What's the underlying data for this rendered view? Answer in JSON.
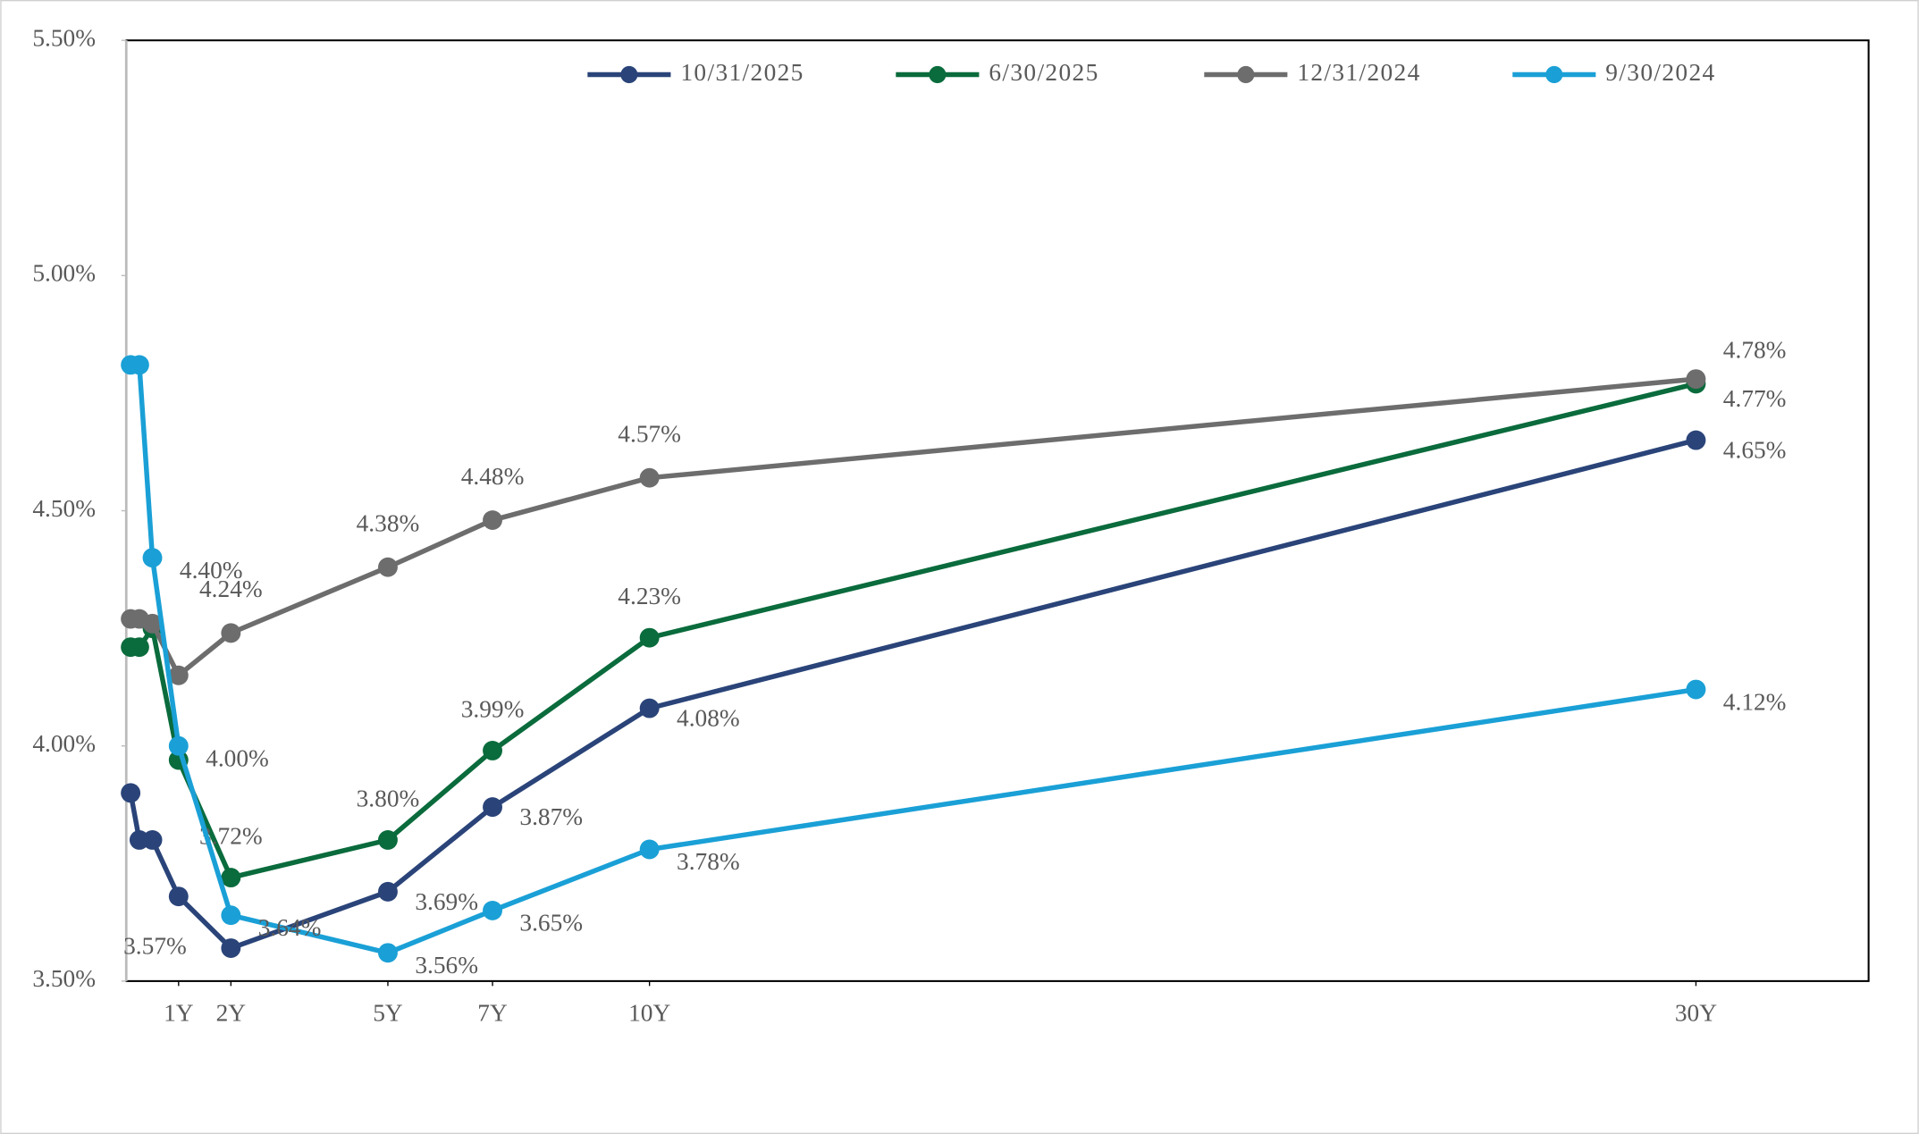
{
  "chart_data": {
    "type": "line",
    "x": [
      0.0833,
      0.25,
      0.5,
      1,
      2,
      5,
      7,
      10,
      30
    ],
    "xlim": [
      0,
      33.3
    ],
    "xticks": [
      {
        "value": 1,
        "label": "1Y"
      },
      {
        "value": 2,
        "label": "2Y"
      },
      {
        "value": 5,
        "label": "5Y"
      },
      {
        "value": 7,
        "label": "7Y"
      },
      {
        "value": 10,
        "label": "10Y"
      },
      {
        "value": 30,
        "label": "30Y"
      }
    ],
    "ylim": [
      3.5,
      5.5
    ],
    "yticks": [
      {
        "value": 3.5,
        "label": "3.50%"
      },
      {
        "value": 4,
        "label": "4.00%"
      },
      {
        "value": 4.5,
        "label": "4.50%"
      },
      {
        "value": 5,
        "label": "5.00%"
      },
      {
        "value": 5.5,
        "label": "5.50%"
      }
    ],
    "legend": "top",
    "series": [
      {
        "name": "10/31/2025",
        "color": "#2a4479",
        "values": [
          3.9,
          3.8,
          3.8,
          3.68,
          3.57,
          3.69,
          3.87,
          4.08,
          4.65
        ],
        "value_labels": [
          null,
          null,
          null,
          null,
          "3.57%",
          "3.69%",
          "3.87%",
          "4.08%",
          "4.65%"
        ]
      },
      {
        "name": "6/30/2025",
        "color": "#0a6b3c",
        "values": [
          4.21,
          4.21,
          4.25,
          3.97,
          3.72,
          3.8,
          3.99,
          4.23,
          4.77
        ],
        "value_labels": [
          null,
          null,
          null,
          null,
          "3.72%",
          "3.80%",
          "3.99%",
          "4.23%",
          "4.77%"
        ]
      },
      {
        "name": "12/31/2024",
        "color": "#6d6d6d",
        "values": [
          4.27,
          4.27,
          4.26,
          4.15,
          4.24,
          4.38,
          4.48,
          4.57,
          4.78
        ],
        "value_labels": [
          null,
          null,
          null,
          null,
          "4.24%",
          "4.38%",
          "4.48%",
          "4.57%",
          "4.78%"
        ]
      },
      {
        "name": "9/30/2024",
        "color": "#1aa0d6",
        "values": [
          4.81,
          4.81,
          4.4,
          4.0,
          3.64,
          3.56,
          3.65,
          3.78,
          4.12
        ],
        "value_labels": [
          null,
          null,
          "4.40%",
          "4.00%",
          "3.64%",
          "3.56%",
          "3.65%",
          "3.78%",
          "4.12%"
        ]
      }
    ]
  }
}
